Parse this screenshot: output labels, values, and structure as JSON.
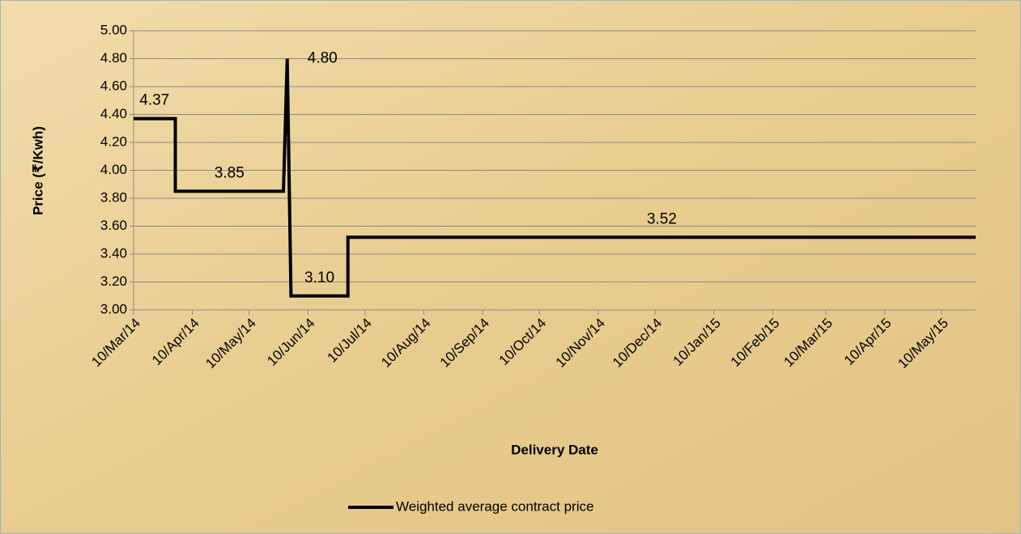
{
  "chart_data": {
    "type": "line",
    "x_label": "Delivery Date",
    "y_label": "Price (₹/Kwh)",
    "x": [
      "10/Mar/14",
      "01/Apr/14",
      "01/Apr/14",
      "28/May/14",
      "30/May/14",
      "01/Jun/14",
      "01/Jul/14",
      "01/Jul/14",
      "28/May/15"
    ],
    "series": [
      {
        "name": "Weighted average contract price",
        "color": "#000000",
        "values": [
          4.37,
          4.37,
          3.85,
          3.85,
          4.8,
          3.1,
          3.1,
          3.52,
          3.52
        ],
        "value_labels": [
          "4.37",
          null,
          "3.85",
          null,
          "4.80",
          "3.10",
          null,
          "3.52",
          null
        ]
      }
    ],
    "xlim": [
      "10/Mar/14",
      "28/May/15"
    ],
    "xticks": [
      "10/Mar/14",
      "10/Apr/14",
      "10/May/14",
      "10/Jun/14",
      "10/Jul/14",
      "10/Aug/14",
      "10/Sep/14",
      "10/Oct/14",
      "10/Nov/14",
      "10/Dec/14",
      "10/Jan/15",
      "10/Feb/15",
      "10/Mar/15",
      "10/Apr/15",
      "10/May/15"
    ],
    "ylim": [
      3,
      5
    ],
    "yticks": [
      {
        "value": 3,
        "label": "3.00"
      },
      {
        "value": 3.2,
        "label": "3.20"
      },
      {
        "value": 3.4,
        "label": "3.40"
      },
      {
        "value": 3.6,
        "label": "3.60"
      },
      {
        "value": 3.8,
        "label": "3.80"
      },
      {
        "value": 4,
        "label": "4.00"
      },
      {
        "value": 4.2,
        "label": "4.20"
      },
      {
        "value": 4.4,
        "label": "4.40"
      },
      {
        "value": 4.6,
        "label": "4.60"
      },
      {
        "value": 4.8,
        "label": "4.80"
      },
      {
        "value": 5,
        "label": "5.00"
      }
    ],
    "grid": true,
    "legend": "bottom"
  }
}
